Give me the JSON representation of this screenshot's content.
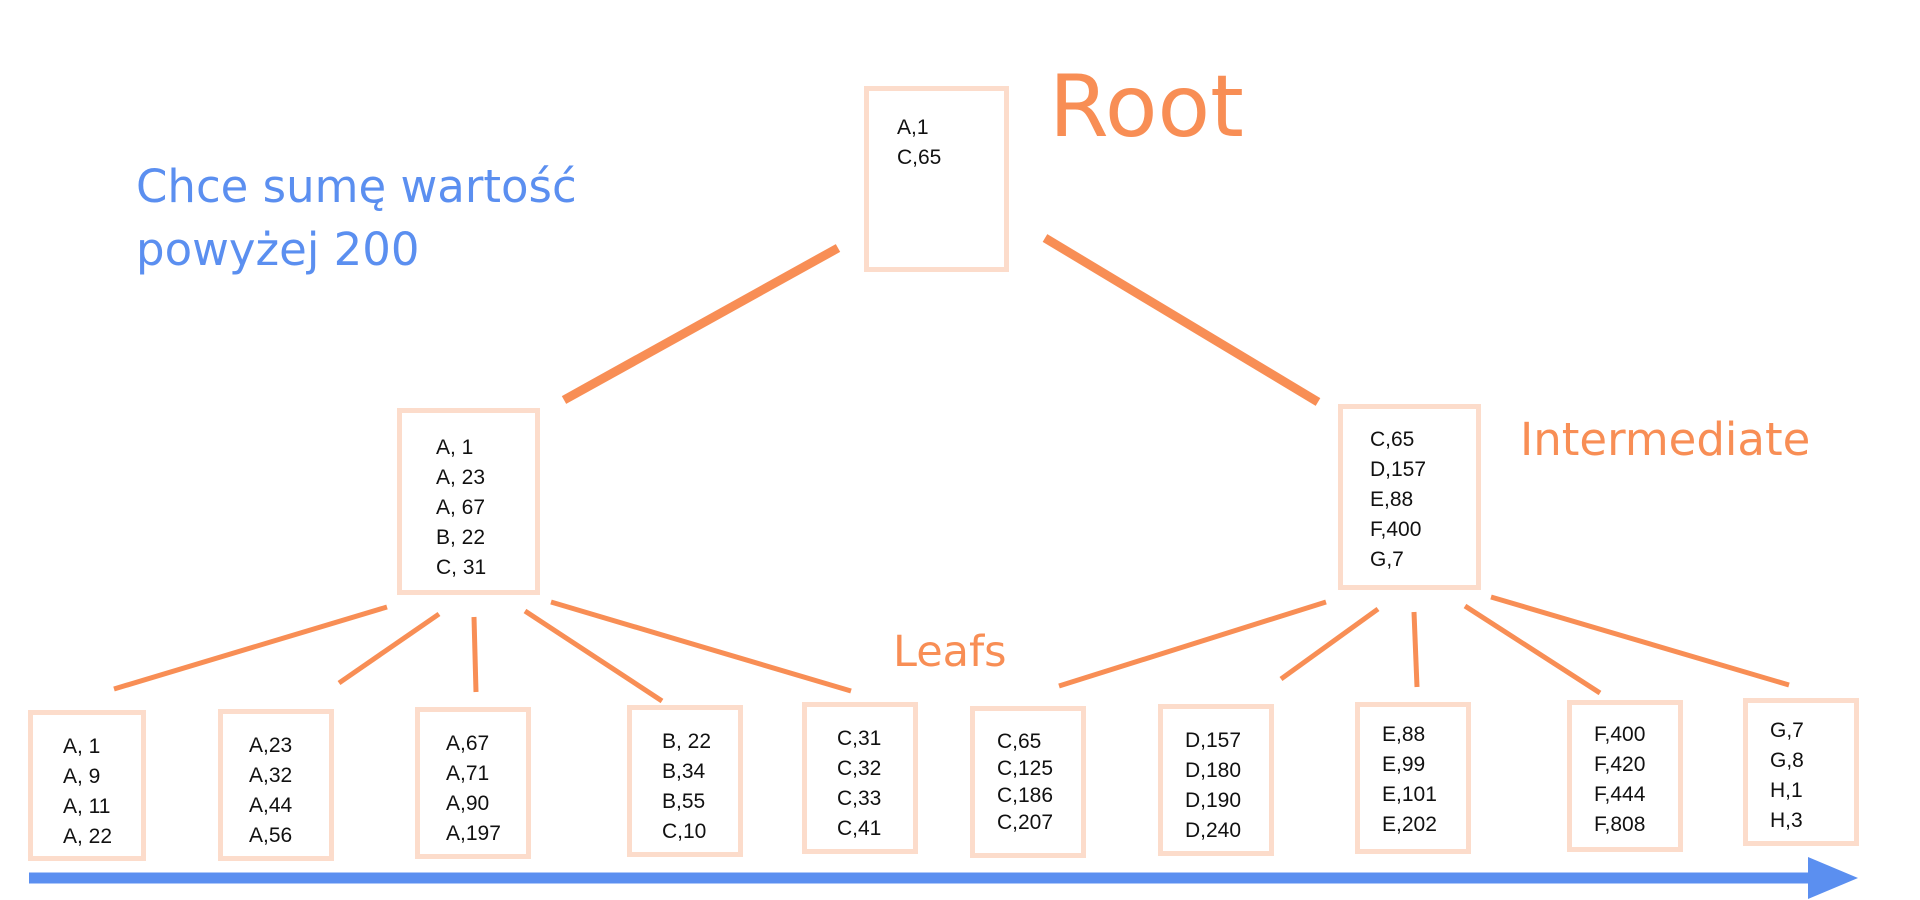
{
  "colors": {
    "accent_orange": "#f88e55",
    "node_border": "#fcdccb",
    "arrow_blue": "#5b8ff0",
    "text": "#111111"
  },
  "labels": {
    "root": "Root",
    "intermediate": "Intermediate",
    "leafs": "Leafs",
    "question_line1": "Chce sumę wartość",
    "question_line2": "powyżej 200"
  },
  "root": {
    "entries": [
      "A,1",
      "C,65"
    ]
  },
  "intermediate": [
    {
      "entries": [
        "A, 1",
        "A, 23",
        "A, 67",
        "B, 22",
        "C, 31"
      ]
    },
    {
      "entries": [
        "C,65",
        "D,157",
        "E,88",
        "F,400",
        "G,7"
      ]
    }
  ],
  "leaves": [
    {
      "entries": [
        "A, 1",
        "A, 9",
        "A, 11",
        "A, 22"
      ]
    },
    {
      "entries": [
        "A,23",
        "A,32",
        "A,44",
        "A,56"
      ]
    },
    {
      "entries": [
        "A,67",
        "A,71",
        "A,90",
        "A,197"
      ]
    },
    {
      "entries": [
        "B, 22",
        "B,34",
        "B,55",
        "C,10"
      ]
    },
    {
      "entries": [
        "C,31",
        "C,32",
        "C,33",
        "C,41"
      ]
    },
    {
      "entries": [
        "C,65",
        "C,125",
        "C,186",
        "C,207"
      ]
    },
    {
      "entries": [
        "D,157",
        "D,180",
        "D,190",
        "D,240"
      ]
    },
    {
      "entries": [
        "E,88",
        "E,99",
        "E,101",
        "E,202"
      ]
    },
    {
      "entries": [
        "F,400",
        "F,420",
        "F,444",
        "F,808"
      ]
    },
    {
      "entries": [
        "G,7",
        "G,8",
        "H,1",
        "H,3"
      ]
    }
  ]
}
